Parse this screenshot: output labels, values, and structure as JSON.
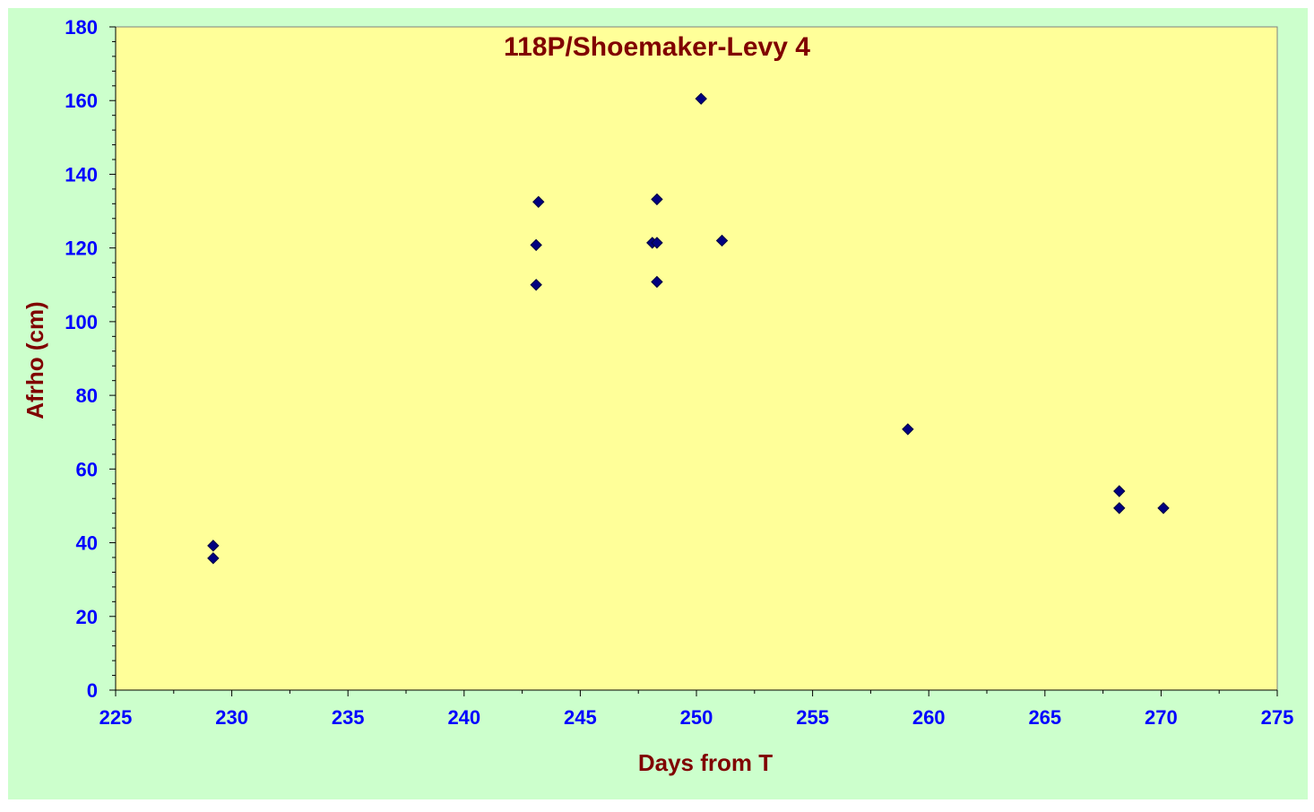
{
  "chart_data": {
    "type": "scatter",
    "title": "118P/Shoemaker-Levy 4",
    "xlabel": "Days from T",
    "ylabel": "Afrho (cm)",
    "xlim": [
      225,
      275
    ],
    "ylim": [
      0,
      180
    ],
    "x_ticks": [
      225,
      230,
      235,
      240,
      245,
      250,
      255,
      260,
      265,
      270,
      275
    ],
    "y_ticks": [
      0,
      20,
      40,
      60,
      80,
      100,
      120,
      140,
      160,
      180
    ],
    "grid": false,
    "legend": "none",
    "series": [
      {
        "marker": "diamond",
        "points": [
          {
            "x": 229.2,
            "y": 39.2
          },
          {
            "x": 229.2,
            "y": 35.8
          },
          {
            "x": 243.1,
            "y": 120.8
          },
          {
            "x": 243.1,
            "y": 110.0
          },
          {
            "x": 243.2,
            "y": 132.5
          },
          {
            "x": 248.1,
            "y": 121.4
          },
          {
            "x": 248.3,
            "y": 121.4
          },
          {
            "x": 248.3,
            "y": 133.2
          },
          {
            "x": 248.3,
            "y": 110.8
          },
          {
            "x": 250.2,
            "y": 160.5
          },
          {
            "x": 251.1,
            "y": 122.0
          },
          {
            "x": 259.1,
            "y": 70.8
          },
          {
            "x": 268.2,
            "y": 54.0
          },
          {
            "x": 268.2,
            "y": 49.4
          },
          {
            "x": 270.1,
            "y": 49.4
          }
        ]
      }
    ],
    "colors": {
      "outer_background": "#ccffcc",
      "plot_background": "#ffff99",
      "tick_labels": "#0000ff",
      "title": "#800000",
      "axis_titles": "#800000",
      "marker_fill": "#000080"
    }
  }
}
